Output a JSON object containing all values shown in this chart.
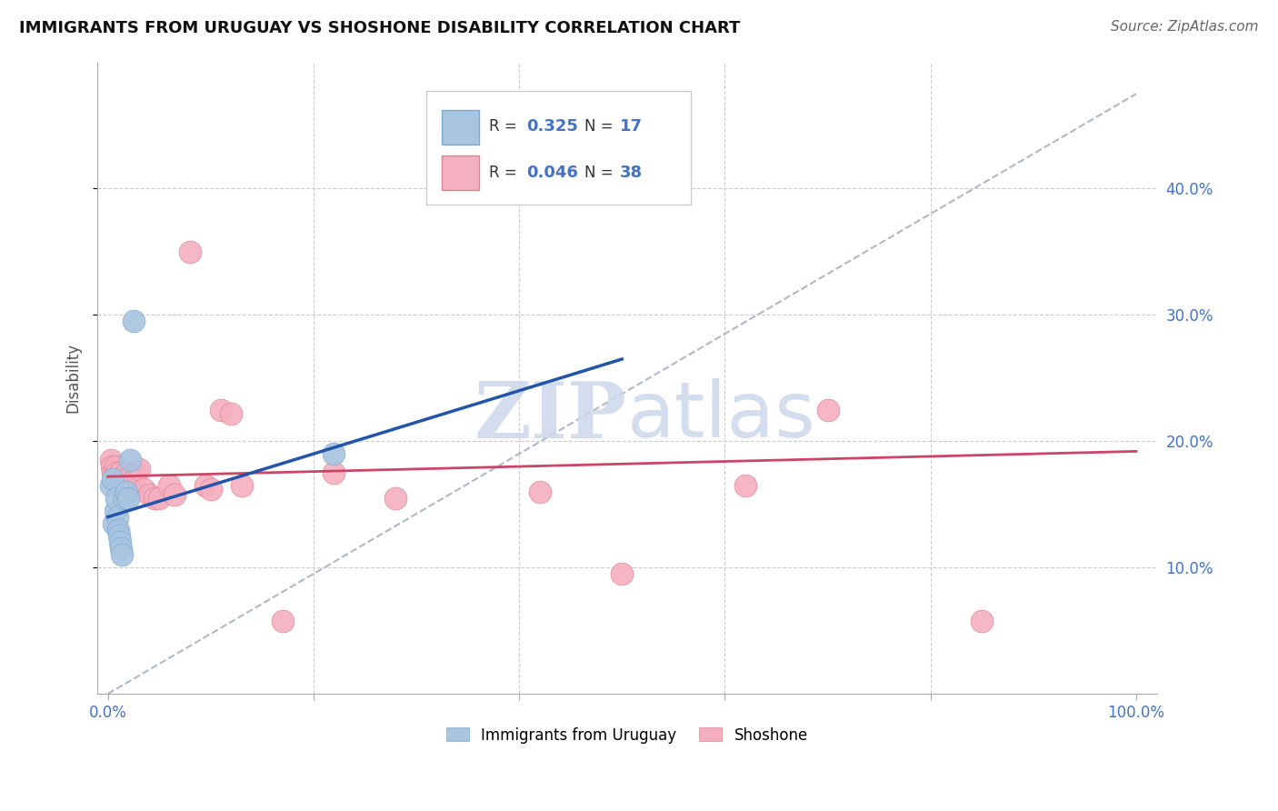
{
  "title": "IMMIGRANTS FROM URUGUAY VS SHOSHONE DISABILITY CORRELATION CHART",
  "source": "Source: ZipAtlas.com",
  "ylabel": "Disability",
  "xlim": [
    -0.01,
    1.02
  ],
  "ylim": [
    0.0,
    0.5
  ],
  "ytick_positions": [
    0.1,
    0.2,
    0.3,
    0.4
  ],
  "ytick_labels": [
    "10.0%",
    "20.0%",
    "30.0%",
    "40.0%"
  ],
  "xtick_positions": [
    0.0,
    0.2,
    0.4,
    0.6,
    0.8,
    1.0
  ],
  "xtick_labels_show": [
    "0.0%",
    "100.0%"
  ],
  "watermark": "ZIPatlas",
  "blue_scatter_x": [
    0.003,
    0.005,
    0.006,
    0.007,
    0.008,
    0.009,
    0.01,
    0.011,
    0.012,
    0.013,
    0.014,
    0.016,
    0.018,
    0.02,
    0.022,
    0.025,
    0.22
  ],
  "blue_scatter_y": [
    0.165,
    0.17,
    0.135,
    0.145,
    0.155,
    0.14,
    0.13,
    0.125,
    0.12,
    0.115,
    0.11,
    0.155,
    0.16,
    0.155,
    0.185,
    0.295,
    0.19
  ],
  "pink_scatter_x": [
    0.003,
    0.004,
    0.005,
    0.006,
    0.007,
    0.008,
    0.009,
    0.01,
    0.011,
    0.012,
    0.014,
    0.016,
    0.018,
    0.02,
    0.022,
    0.025,
    0.028,
    0.03,
    0.035,
    0.04,
    0.045,
    0.05,
    0.06,
    0.065,
    0.08,
    0.095,
    0.1,
    0.11,
    0.12,
    0.13,
    0.17,
    0.22,
    0.28,
    0.42,
    0.5,
    0.62,
    0.7,
    0.85
  ],
  "pink_scatter_y": [
    0.185,
    0.18,
    0.175,
    0.17,
    0.18,
    0.175,
    0.168,
    0.172,
    0.165,
    0.175,
    0.17,
    0.168,
    0.175,
    0.165,
    0.172,
    0.168,
    0.175,
    0.178,
    0.162,
    0.158,
    0.155,
    0.155,
    0.165,
    0.158,
    0.35,
    0.165,
    0.162,
    0.225,
    0.222,
    0.165,
    0.058,
    0.175,
    0.155,
    0.16,
    0.095,
    0.165,
    0.225,
    0.058
  ],
  "blue_line_x": [
    0.0,
    0.5
  ],
  "blue_line_y": [
    0.14,
    0.265
  ],
  "pink_line_x": [
    0.0,
    1.0
  ],
  "pink_line_y": [
    0.172,
    0.192
  ],
  "dashed_line_x": [
    0.0,
    1.0
  ],
  "dashed_line_y": [
    0.0,
    0.475
  ],
  "bg_color": "#ffffff",
  "blue_color": "#a8c4e0",
  "blue_edge_color": "#7aaad0",
  "blue_line_color": "#2255aa",
  "pink_color": "#f4b0c0",
  "pink_edge_color": "#e08090",
  "pink_line_color": "#cc4466",
  "dashed_line_color": "#b0b8c8",
  "grid_color": "#cccccc",
  "title_fontsize": 13,
  "tick_label_color": "#4472c4",
  "legend_r_blue": "0.325",
  "legend_n_blue": "17",
  "legend_r_pink": "0.046",
  "legend_n_pink": "38"
}
